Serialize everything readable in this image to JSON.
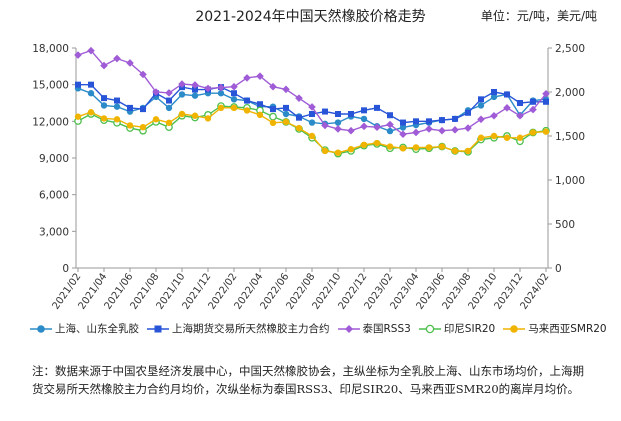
{
  "header": {
    "title": "2021-2024年中国天然橡胶价格走势",
    "unit": "单位：元/吨，美元/吨"
  },
  "note": "注：数据来源于中国农垦经济发展中心，中国天然橡胶协会，主纵坐标为全乳胶上海、山东市场均价，上海期货交易所天然橡胶主力合约月均价，次纵坐标为泰国RSS3、印尼SIR20、马来西亚SMR20的离岸月均价。",
  "chart_data": {
    "type": "line",
    "categories": [
      "2021/02",
      "2021/03",
      "2021/04",
      "2021/05",
      "2021/06",
      "2021/07",
      "2021/08",
      "2021/09",
      "2021/10",
      "2021/11",
      "2021/12",
      "2022/01",
      "2022/02",
      "2022/03",
      "2022/04",
      "2022/05",
      "2022/06",
      "2022/07",
      "2022/08",
      "2022/09",
      "2022/10",
      "2022/11",
      "2022/12",
      "2023/01",
      "2023/02",
      "2023/03",
      "2023/04",
      "2023/05",
      "2023/06",
      "2023/07",
      "2023/08",
      "2023/09",
      "2023/10",
      "2023/11",
      "2023/12",
      "2024/01",
      "2024/02"
    ],
    "x_tick_labels": [
      "2021/02",
      "2021/04",
      "2021/06",
      "2021/08",
      "2021/10",
      "2021/12",
      "2022/02",
      "2022/04",
      "2022/06",
      "2022/08",
      "2022/10",
      "2022/12",
      "2023/02",
      "2023/04",
      "2023/06",
      "2023/08",
      "2023/10",
      "2023/12",
      "2024/02"
    ],
    "y_left": {
      "ticks": [
        "0",
        "3,000",
        "6,000",
        "9,000",
        "12,000",
        "15,000",
        "18,000"
      ],
      "range": [
        0,
        18000
      ]
    },
    "y_right": {
      "ticks": [
        "0",
        "500",
        "1,000",
        "1,500",
        "2,000",
        "2,500"
      ],
      "range": [
        0,
        2500
      ]
    },
    "series": [
      {
        "name": "上海、山东全乳胶",
        "axis": "left",
        "color": "#2b8bc9",
        "marker": "circle",
        "values": [
          14700,
          14300,
          13300,
          13200,
          12800,
          13100,
          14000,
          13100,
          14200,
          14100,
          14300,
          14300,
          13800,
          13700,
          13200,
          13200,
          12600,
          12400,
          11900,
          11800,
          11900,
          12400,
          12200,
          11600,
          11200,
          11500,
          11700,
          11900,
          12100,
          12200,
          12900,
          13300,
          14000,
          14200,
          12500,
          13700,
          13800
        ]
      },
      {
        "name": "上海期货交易所天然橡胶主力合约",
        "axis": "left",
        "color": "#2855d8",
        "marker": "square",
        "values": [
          15000,
          15000,
          13900,
          13700,
          13100,
          13000,
          14300,
          13700,
          14800,
          14600,
          14600,
          14800,
          14300,
          13700,
          13400,
          13000,
          13100,
          12300,
          12600,
          12800,
          12600,
          12600,
          12900,
          13100,
          12500,
          11900,
          12000,
          12000,
          12100,
          12200,
          12700,
          13800,
          14400,
          14200,
          13500,
          13600,
          13600
        ]
      },
      {
        "name": "泰国RSS3",
        "axis": "right",
        "color": "#a05cd6",
        "marker": "diamond",
        "values": [
          2420,
          2470,
          2300,
          2380,
          2330,
          2200,
          2000,
          1990,
          2090,
          2080,
          2040,
          2050,
          2060,
          2160,
          2180,
          2060,
          2030,
          1930,
          1830,
          1620,
          1580,
          1560,
          1610,
          1600,
          1630,
          1520,
          1540,
          1580,
          1560,
          1570,
          1590,
          1690,
          1730,
          1820,
          1730,
          1800,
          1980
        ]
      },
      {
        "name": "印尼SIR20",
        "axis": "right",
        "color": "#4dbf4d",
        "marker": "open-circle",
        "values": [
          1670,
          1750,
          1680,
          1650,
          1590,
          1560,
          1660,
          1600,
          1730,
          1710,
          1740,
          1840,
          1830,
          1820,
          1790,
          1720,
          1660,
          1580,
          1480,
          1340,
          1300,
          1330,
          1390,
          1410,
          1360,
          1370,
          1350,
          1360,
          1380,
          1330,
          1320,
          1460,
          1480,
          1500,
          1440,
          1540,
          1560
        ]
      },
      {
        "name": "马来西亚SMR20",
        "axis": "right",
        "color": "#f0b400",
        "marker": "filled-circle",
        "values": [
          1720,
          1770,
          1700,
          1690,
          1620,
          1600,
          1690,
          1650,
          1750,
          1730,
          1700,
          1820,
          1820,
          1790,
          1740,
          1650,
          1660,
          1590,
          1500,
          1330,
          1310,
          1350,
          1400,
          1420,
          1380,
          1360,
          1370,
          1370,
          1380,
          1330,
          1330,
          1480,
          1500,
          1480,
          1480,
          1540,
          1550
        ]
      }
    ]
  }
}
